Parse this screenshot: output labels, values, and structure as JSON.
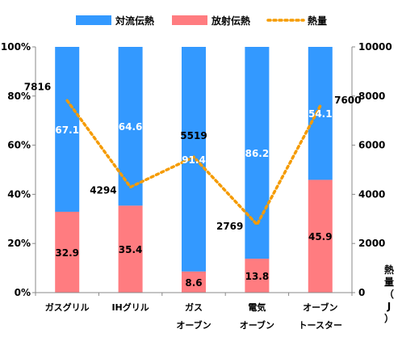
{
  "chart_data": {
    "type": "bar",
    "stacked": true,
    "categories": [
      [
        "ガスグリル"
      ],
      [
        "IHグリル"
      ],
      [
        "ガス",
        "オーブン"
      ],
      [
        "電気",
        "オーブン"
      ],
      [
        "オーブン",
        "トースター"
      ]
    ],
    "series": [
      {
        "name": "対流伝熱",
        "color": "#3399FF",
        "values": [
          67.1,
          64.6,
          91.4,
          86.2,
          54.1
        ],
        "value_labels": [
          "67.1",
          "64.6",
          "91.4",
          "86.2",
          "54.1"
        ]
      },
      {
        "name": "放射伝熱",
        "color": "#FF7C80",
        "values": [
          32.9,
          35.4,
          8.6,
          13.8,
          45.9
        ],
        "value_labels": [
          "32.9",
          "35.4",
          "8.6",
          "13.8",
          "45.9"
        ]
      }
    ],
    "line_series": {
      "name": "熱量",
      "color": "#F59B00",
      "style": "dotted",
      "axis": "right",
      "values": [
        7816,
        4294,
        5519,
        2769,
        7600
      ],
      "value_labels": [
        "7816",
        "4294",
        "5519",
        "2769",
        "7600"
      ]
    },
    "y_left": {
      "min": 0,
      "max": 100,
      "ticks": [
        "0%",
        "20%",
        "40%",
        "60%",
        "80%",
        "100%"
      ]
    },
    "y_right": {
      "min": 0,
      "max": 10000,
      "ticks": [
        "0",
        "2000",
        "4000",
        "6000",
        "8000",
        "10000"
      ],
      "label": [
        "熱",
        "量",
        "（",
        "J",
        "）"
      ]
    },
    "legend": {
      "placement": "top"
    },
    "grid": false
  }
}
